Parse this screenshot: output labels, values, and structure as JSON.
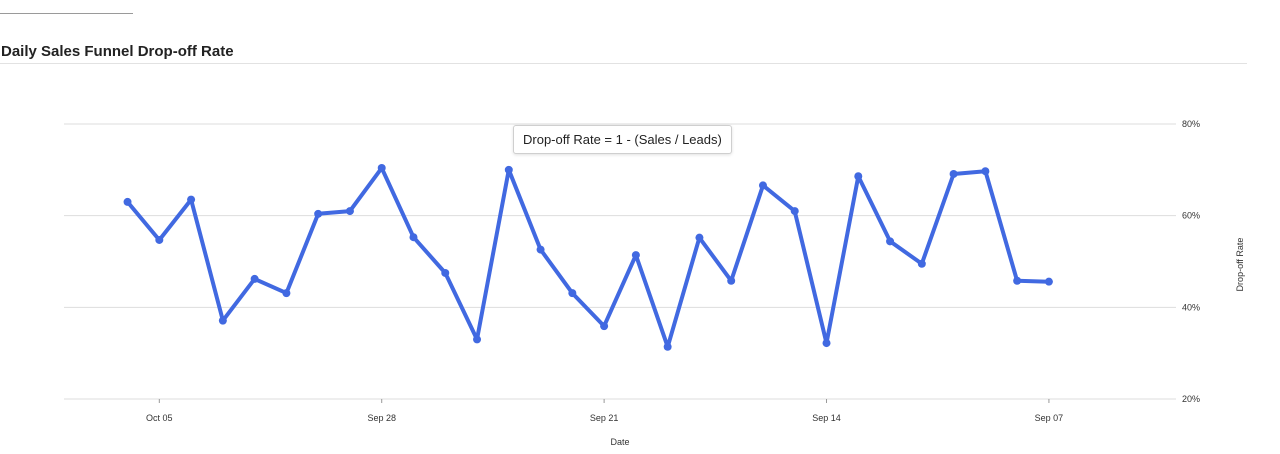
{
  "panel": {
    "title": "Daily Sales Funnel Drop-off Rate"
  },
  "tooltip": {
    "text": "Drop-off Rate = 1 - (Sales / Leads)"
  },
  "colors": {
    "series": "#4169e1",
    "grid": "#dddddd",
    "text": "#333333"
  },
  "chart_data": {
    "type": "line",
    "title": "",
    "xlabel": "Date",
    "ylabel": "Drop-off Rate",
    "y_axis_side": "right",
    "x_reversed": true,
    "xlim": [
      "2024-10-08",
      "2024-09-03"
    ],
    "ylim": [
      20,
      80
    ],
    "y_unit": "%",
    "y_ticks": [
      {
        "value": 20,
        "label": "20%"
      },
      {
        "value": 40,
        "label": "40%"
      },
      {
        "value": 60,
        "label": "60%"
      },
      {
        "value": 80,
        "label": "80%"
      }
    ],
    "x_ticks": [
      {
        "value": "2024-10-05",
        "label": "Oct 05"
      },
      {
        "value": "2024-09-28",
        "label": "Sep 28"
      },
      {
        "value": "2024-09-21",
        "label": "Sep 21"
      },
      {
        "value": "2024-09-14",
        "label": "Sep 14"
      },
      {
        "value": "2024-09-07",
        "label": "Sep 07"
      }
    ],
    "grid": true,
    "legend": "none",
    "series": [
      {
        "x": [
          "2024-10-06",
          "2024-10-05",
          "2024-10-04",
          "2024-10-03",
          "2024-10-02",
          "2024-10-01",
          "2024-09-30",
          "2024-09-29",
          "2024-09-28",
          "2024-09-27",
          "2024-09-26",
          "2024-09-25",
          "2024-09-24",
          "2024-09-23",
          "2024-09-22",
          "2024-09-21",
          "2024-09-20",
          "2024-09-19",
          "2024-09-18",
          "2024-09-17",
          "2024-09-16",
          "2024-09-15",
          "2024-09-14",
          "2024-09-13",
          "2024-09-12",
          "2024-09-11",
          "2024-09-10",
          "2024-09-09",
          "2024-09-08",
          "2024-09-07"
        ],
        "values": [
          63.0,
          54.7,
          63.5,
          37.1,
          46.2,
          43.1,
          60.4,
          61.0,
          70.4,
          55.3,
          47.5,
          33.0,
          70.0,
          52.6,
          43.1,
          35.9,
          51.4,
          31.4,
          55.2,
          45.8,
          66.6,
          61.0,
          32.2,
          68.6,
          54.4,
          49.5,
          69.1,
          69.7,
          45.8,
          45.6
        ]
      }
    ]
  }
}
